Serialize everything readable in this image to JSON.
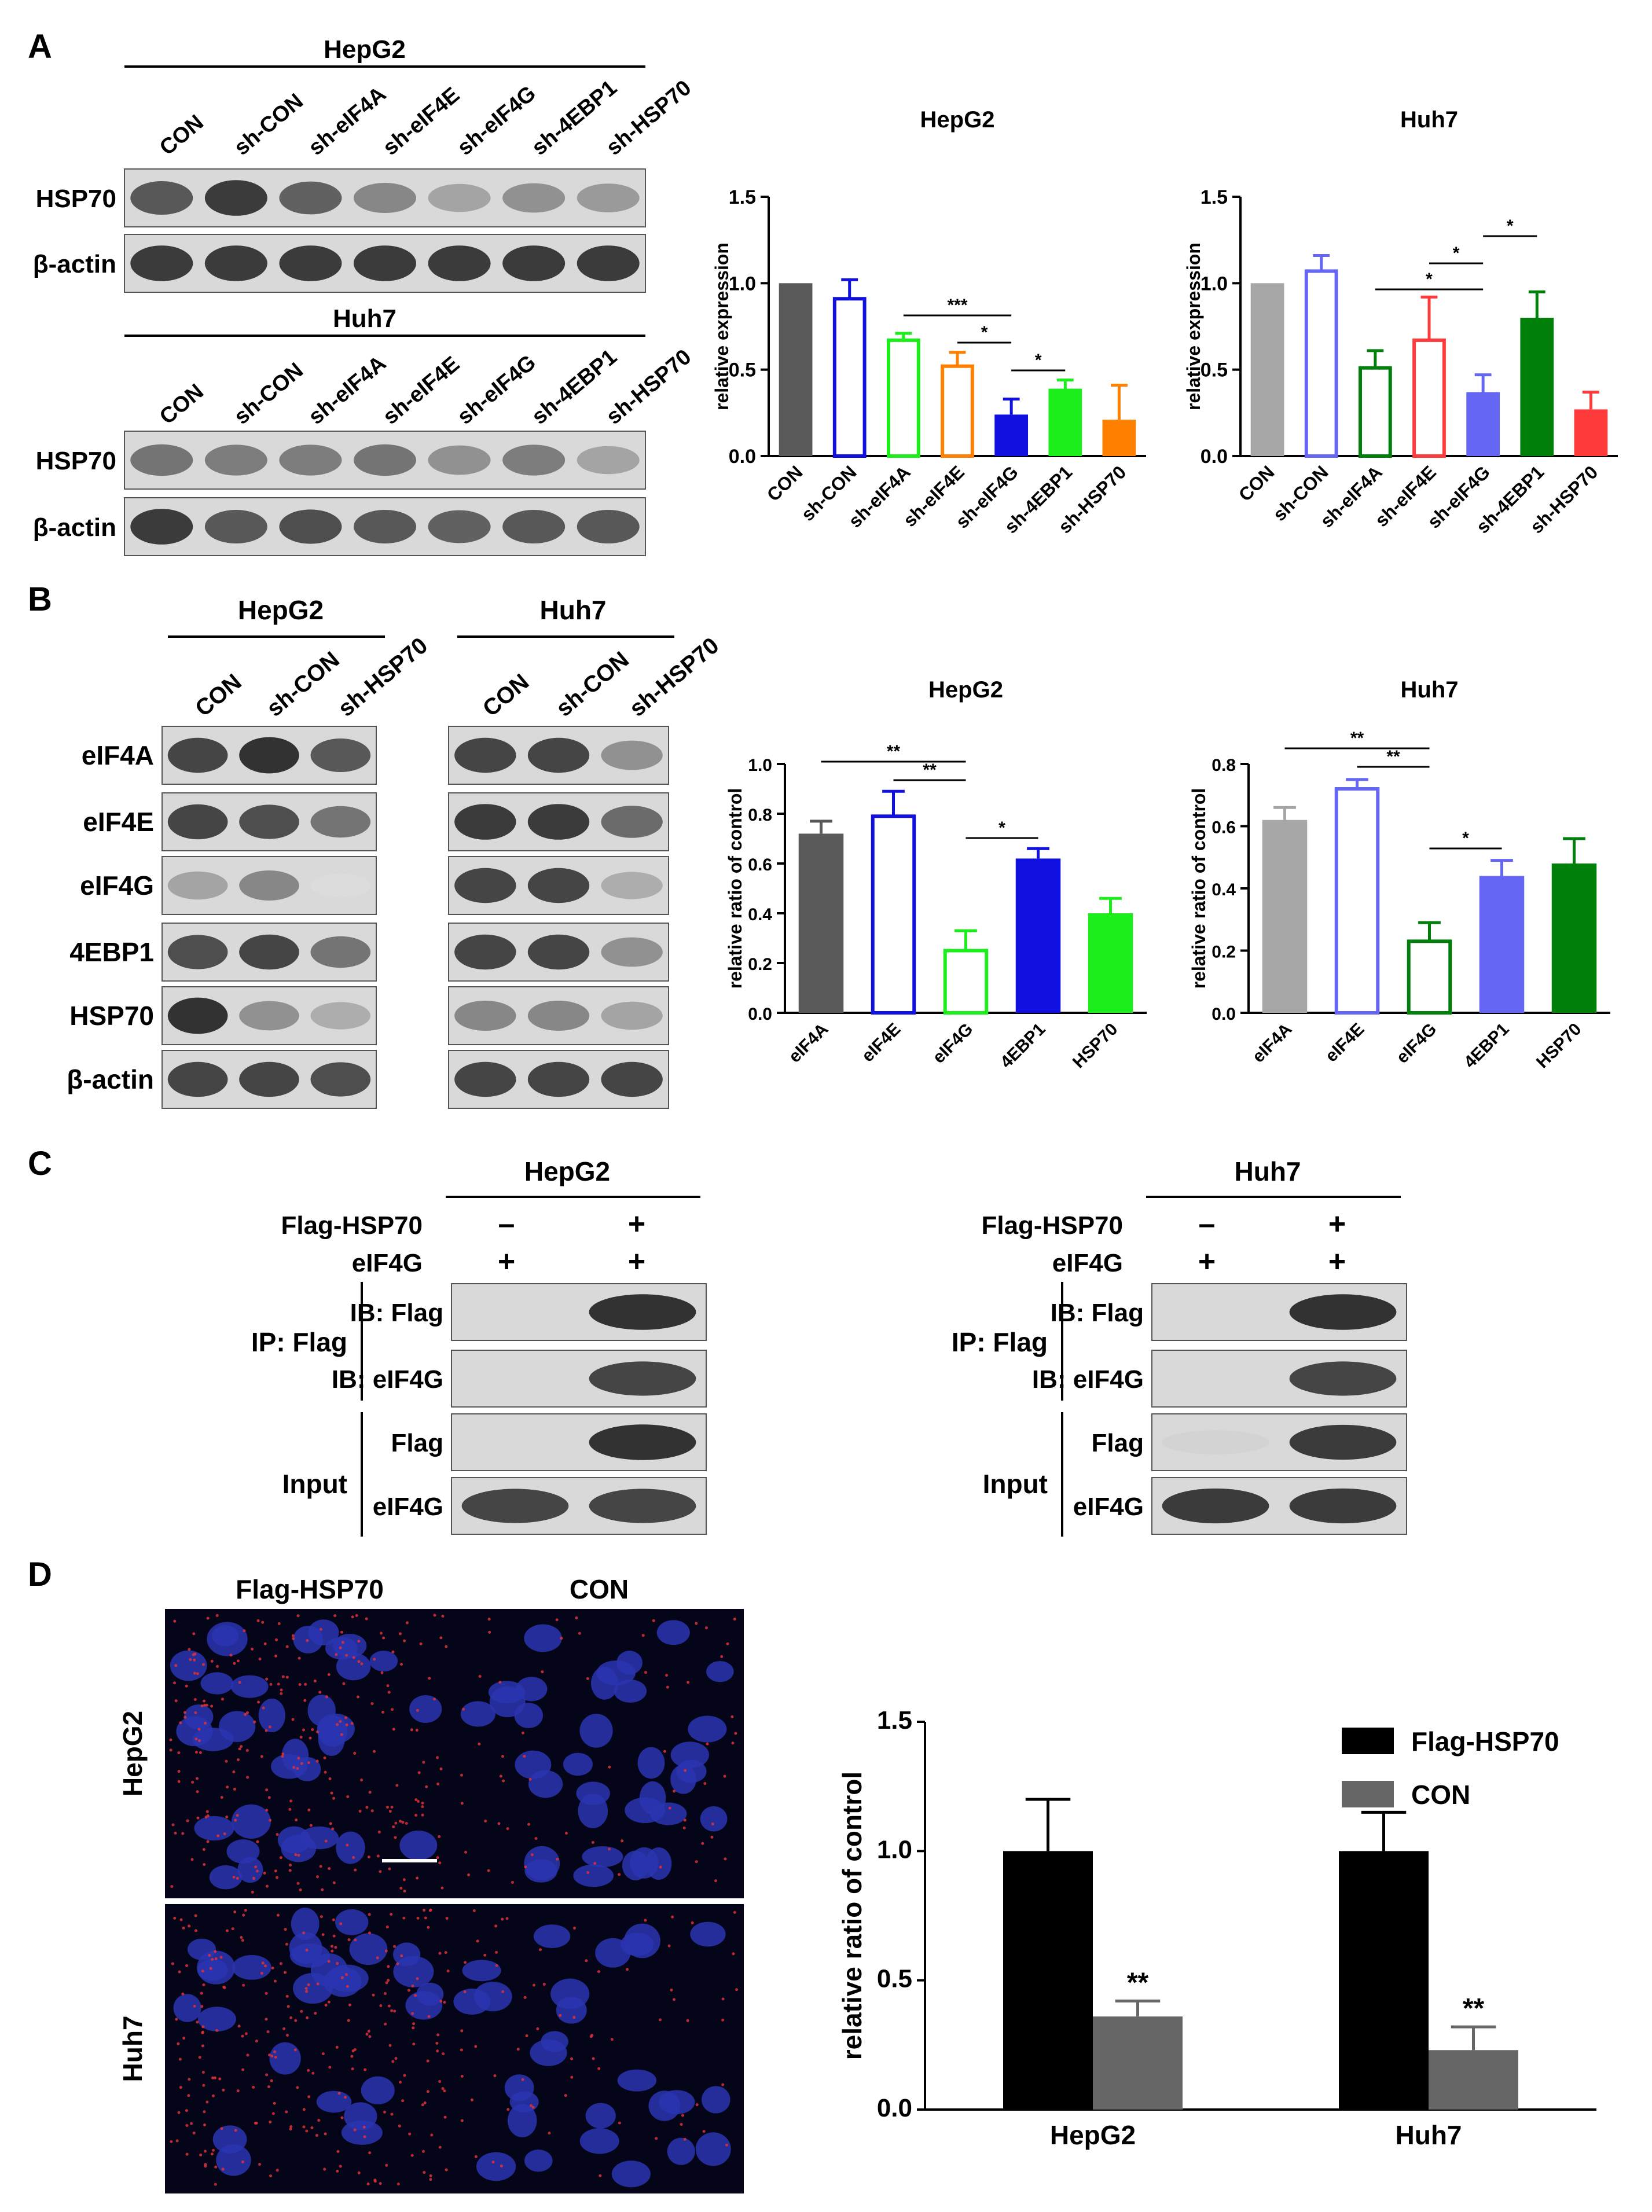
{
  "panels": {
    "A": "A",
    "B": "B",
    "C": "C",
    "D": "D"
  },
  "panel_a": {
    "blot_hepg2": {
      "header": "HepG2",
      "lanes": [
        "CON",
        "sh-CON",
        "sh-eIF4A",
        "sh-eIF4E",
        "sh-eIF4G",
        "sh-4EBP1",
        "sh-HSP70"
      ],
      "rows": [
        {
          "label": "HSP70",
          "intensity": [
            0.75,
            0.9,
            0.7,
            0.5,
            0.35,
            0.45,
            0.4
          ]
        },
        {
          "label": "β-actin",
          "intensity": [
            0.9,
            0.9,
            0.9,
            0.9,
            0.9,
            0.9,
            0.9
          ]
        }
      ]
    },
    "blot_huh7": {
      "header": "Huh7",
      "lanes": [
        "CON",
        "sh-CON",
        "sh-eIF4A",
        "sh-eIF4E",
        "sh-eIF4G",
        "sh-4EBP1",
        "sh-HSP70"
      ],
      "rows": [
        {
          "label": "HSP70",
          "intensity": [
            0.6,
            0.55,
            0.55,
            0.6,
            0.45,
            0.55,
            0.35
          ]
        },
        {
          "label": "β-actin",
          "intensity": [
            0.9,
            0.75,
            0.8,
            0.75,
            0.7,
            0.75,
            0.75
          ]
        }
      ]
    }
  },
  "panel_b": {
    "blot_hepg2": {
      "header": "HepG2",
      "lanes": [
        "CON",
        "sh-CON",
        "sh-HSP70"
      ],
      "rows": [
        {
          "label": "eIF4A",
          "intensity": [
            0.85,
            0.95,
            0.75
          ]
        },
        {
          "label": "eIF4E",
          "intensity": [
            0.85,
            0.8,
            0.6
          ]
        },
        {
          "label": "eIF4G",
          "intensity": [
            0.35,
            0.5,
            0.05
          ]
        },
        {
          "label": "4EBP1",
          "intensity": [
            0.8,
            0.85,
            0.6
          ]
        },
        {
          "label": "HSP70",
          "intensity": [
            0.95,
            0.45,
            0.3
          ]
        },
        {
          "label": "β-actin",
          "intensity": [
            0.85,
            0.85,
            0.8
          ]
        }
      ]
    },
    "blot_huh7": {
      "header": "Huh7",
      "lanes": [
        "CON",
        "sh-CON",
        "sh-HSP70"
      ],
      "rows": [
        {
          "label": "eIF4A",
          "intensity": [
            0.85,
            0.85,
            0.45
          ]
        },
        {
          "label": "eIF4E",
          "intensity": [
            0.9,
            0.9,
            0.65
          ]
        },
        {
          "label": "eIF4G",
          "intensity": [
            0.85,
            0.85,
            0.3
          ]
        },
        {
          "label": "4EBP1",
          "intensity": [
            0.85,
            0.85,
            0.45
          ]
        },
        {
          "label": "HSP70",
          "intensity": [
            0.5,
            0.5,
            0.35
          ]
        },
        {
          "label": "β-actin",
          "intensity": [
            0.85,
            0.85,
            0.85
          ]
        }
      ]
    }
  },
  "panel_c": {
    "hepg2": {
      "header": "HepG2",
      "cond1_label": "Flag-HSP70",
      "cond1": [
        "–",
        "+"
      ],
      "cond2_label": "eIF4G",
      "cond2": [
        "+",
        "+"
      ],
      "ip_label": "IP: Flag",
      "input_label": "Input",
      "rows": [
        {
          "label": "IB: Flag",
          "intensity": [
            0.0,
            0.95
          ]
        },
        {
          "label": "IB: eIF4G",
          "intensity": [
            0.0,
            0.85
          ]
        },
        {
          "label": "Flag",
          "intensity": [
            0.0,
            0.95
          ]
        },
        {
          "label": "eIF4G",
          "intensity": [
            0.85,
            0.85
          ]
        }
      ]
    },
    "huh7": {
      "header": "Huh7",
      "cond1_label": "Flag-HSP70",
      "cond1": [
        "–",
        "+"
      ],
      "cond2_label": "eIF4G",
      "cond2": [
        "+",
        "+"
      ],
      "ip_label": "IP: Flag",
      "input_label": "Input",
      "rows": [
        {
          "label": "IB: Flag",
          "intensity": [
            0.0,
            0.95
          ]
        },
        {
          "label": "IB: eIF4G",
          "intensity": [
            0.0,
            0.85
          ]
        },
        {
          "label": "Flag",
          "intensity": [
            0.1,
            0.9
          ]
        },
        {
          "label": "eIF4G",
          "intensity": [
            0.9,
            0.9
          ]
        }
      ]
    }
  },
  "panel_d": {
    "col_labels": [
      "Flag-HSP70",
      "CON"
    ],
    "row_labels": [
      "HepG2",
      "Huh7"
    ]
  },
  "colors": {
    "dark_gray": "#595959",
    "gray": "#a6a6a6",
    "blue": "#1010e0",
    "light_blue": "#6666f5",
    "green": "#1cee1c",
    "dark_green": "#00800a",
    "orange": "#ff8000",
    "red": "#ff3a3a",
    "black": "#000000",
    "mid_gray": "#666666"
  },
  "chart_data": [
    {
      "type": "bar",
      "title": "HepG2",
      "ylabel": "relative expression",
      "ylim": [
        0,
        1.5
      ],
      "yticks": [
        "0.0",
        "0.5",
        "1.0",
        "1.5"
      ],
      "categories": [
        "CON",
        "sh-CON",
        "sh-eIF4A",
        "sh-eIF4E",
        "sh-eIF4G",
        "sh-4EBP1",
        "sh-HSP70"
      ],
      "values": [
        1.0,
        0.91,
        0.67,
        0.52,
        0.24,
        0.39,
        0.21
      ],
      "errors": [
        0,
        0.11,
        0.04,
        0.08,
        0.09,
        0.05,
        0.2
      ],
      "colors": [
        "#595959",
        "#1010e0",
        "#1cee1c",
        "#ff8000",
        "#1010e0",
        "#1cee1c",
        "#ff8000"
      ],
      "filled": [
        true,
        false,
        false,
        false,
        true,
        true,
        true
      ],
      "significance": [
        {
          "from": 2,
          "to": 4,
          "label": "***"
        },
        {
          "from": 3,
          "to": 4,
          "label": "*"
        },
        {
          "from": 4,
          "to": 5,
          "label": "*"
        }
      ]
    },
    {
      "type": "bar",
      "title": "Huh7",
      "ylabel": "relative expression",
      "ylim": [
        0,
        1.5
      ],
      "yticks": [
        "0.0",
        "0.5",
        "1.0",
        "1.5"
      ],
      "categories": [
        "CON",
        "sh-CON",
        "sh-eIF4A",
        "sh-eIF4E",
        "sh-eIF4G",
        "sh-4EBP1",
        "sh-HSP70"
      ],
      "values": [
        1.0,
        1.07,
        0.51,
        0.67,
        0.37,
        0.8,
        0.27
      ],
      "errors": [
        0,
        0.09,
        0.1,
        0.25,
        0.1,
        0.15,
        0.1
      ],
      "colors": [
        "#a6a6a6",
        "#6666f5",
        "#00800a",
        "#ff3a3a",
        "#6666f5",
        "#00800a",
        "#ff3a3a"
      ],
      "filled": [
        true,
        false,
        false,
        false,
        true,
        true,
        true
      ],
      "significance": [
        {
          "from": 2,
          "to": 4,
          "label": "*"
        },
        {
          "from": 3,
          "to": 4,
          "label": "*"
        },
        {
          "from": 4,
          "to": 5,
          "label": "*"
        }
      ]
    },
    {
      "type": "bar",
      "title": "HepG2",
      "ylabel": "relative ratio of control",
      "ylim": [
        0,
        1.0
      ],
      "yticks": [
        "0.0",
        "0.2",
        "0.4",
        "0.6",
        "0.8",
        "1.0"
      ],
      "categories": [
        "eIF4A",
        "eIF4E",
        "eIF4G",
        "4EBP1",
        "HSP70"
      ],
      "values": [
        0.72,
        0.79,
        0.25,
        0.62,
        0.4
      ],
      "errors": [
        0.05,
        0.1,
        0.08,
        0.04,
        0.06
      ],
      "colors": [
        "#595959",
        "#1010e0",
        "#1cee1c",
        "#1010e0",
        "#1cee1c"
      ],
      "filled": [
        true,
        false,
        false,
        true,
        true
      ],
      "significance": [
        {
          "from": 0,
          "to": 2,
          "label": "**"
        },
        {
          "from": 1,
          "to": 2,
          "label": "**"
        },
        {
          "from": 2,
          "to": 3,
          "label": "*"
        }
      ]
    },
    {
      "type": "bar",
      "title": "Huh7",
      "ylabel": "relative ratio of control",
      "ylim": [
        0,
        0.8
      ],
      "yticks": [
        "0.0",
        "0.2",
        "0.4",
        "0.6",
        "0.8"
      ],
      "categories": [
        "eIF4A",
        "eIF4E",
        "eIF4G",
        "4EBP1",
        "HSP70"
      ],
      "values": [
        0.62,
        0.72,
        0.23,
        0.44,
        0.48
      ],
      "errors": [
        0.04,
        0.03,
        0.06,
        0.05,
        0.08
      ],
      "colors": [
        "#a6a6a6",
        "#6666f5",
        "#00800a",
        "#6666f5",
        "#00800a"
      ],
      "filled": [
        true,
        false,
        false,
        true,
        true
      ],
      "significance": [
        {
          "from": 0,
          "to": 2,
          "label": "**"
        },
        {
          "from": 1,
          "to": 2,
          "label": "**"
        },
        {
          "from": 2,
          "to": 3,
          "label": "*"
        }
      ]
    },
    {
      "type": "bar",
      "ylabel": "relative ratio of control",
      "ylim": [
        0,
        1.5
      ],
      "yticks": [
        "0.0",
        "0.5",
        "1.0",
        "1.5"
      ],
      "categories": [
        "HepG2",
        "Huh7"
      ],
      "series": [
        {
          "name": "Flag-HSP70",
          "values": [
            1.0,
            1.0
          ],
          "errors": [
            0.2,
            0.15
          ],
          "color": "#000000"
        },
        {
          "name": "CON",
          "values": [
            0.36,
            0.23
          ],
          "errors": [
            0.06,
            0.09
          ],
          "color": "#666666"
        }
      ],
      "annotations": [
        "**",
        "**"
      ],
      "legend": "top-right"
    }
  ]
}
